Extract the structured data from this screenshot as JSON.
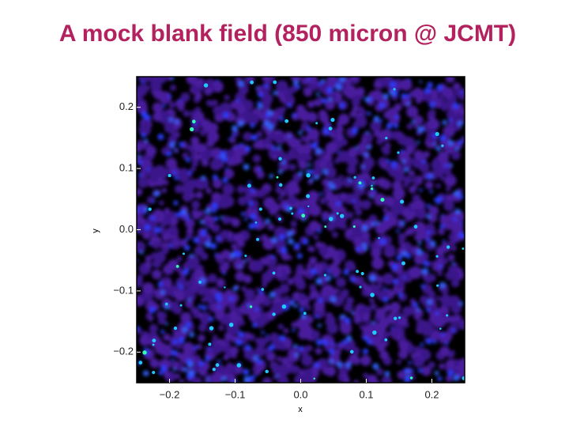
{
  "chart_data": {
    "type": "image",
    "title": "A mock blank field (850 micron @ JCMT)",
    "x_label": "x",
    "y_label": "y",
    "xlim": [
      -0.25,
      0.25
    ],
    "ylim": [
      -0.25,
      0.25
    ],
    "xticks": [
      {
        "value": -0.2,
        "label": "−0.2"
      },
      {
        "value": -0.1,
        "label": "−0.1"
      },
      {
        "value": 0,
        "label": "0.0"
      },
      0.1,
      0.2
    ],
    "yticks": [
      {
        "value": -0.2,
        "label": "−0.2"
      },
      {
        "value": -0.1,
        "label": "−0.1"
      },
      {
        "value": 0,
        "label": "0.0"
      },
      0.1,
      0.2
    ]
  }
}
